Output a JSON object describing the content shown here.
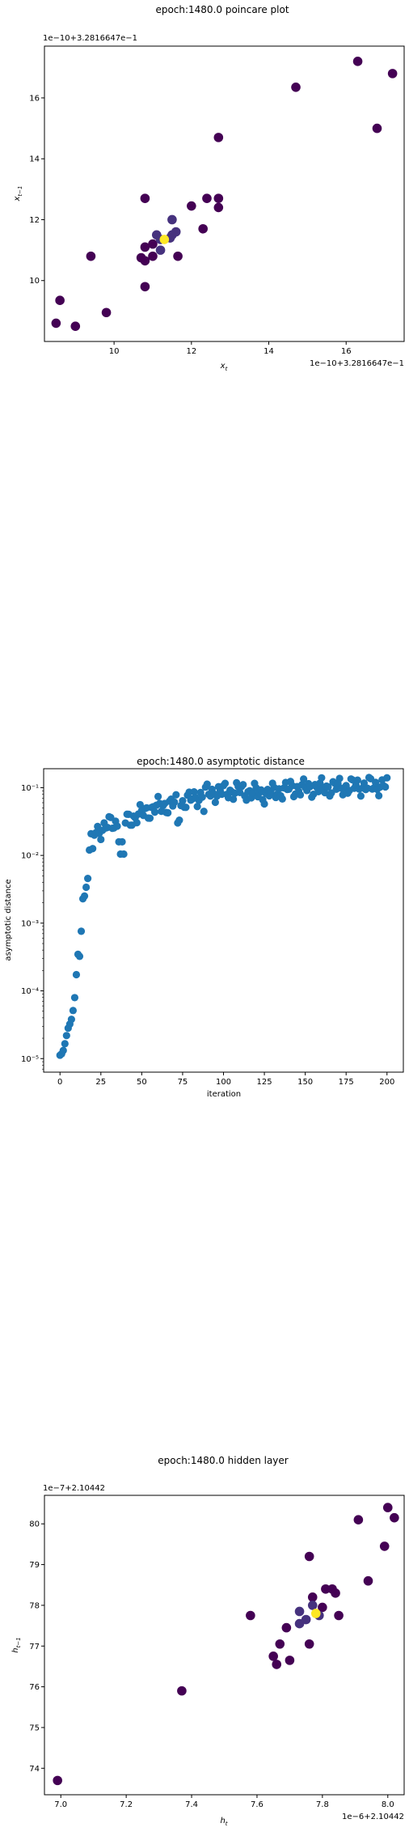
{
  "chart_data": [
    {
      "type": "scatter",
      "title": "epoch:1480.0 poincare plot",
      "xlabel": "x_t",
      "ylabel": "x_{t−1}",
      "offset_text_x": "1e−10+3.2816647e−1",
      "offset_text_y": "1e−10+3.2816647e−1",
      "xlim": [
        8.2,
        17.5
      ],
      "ylim": [
        8.0,
        17.7
      ],
      "xticks": [
        10,
        12,
        14,
        16
      ],
      "yticks": [
        10,
        12,
        14,
        16
      ],
      "xtick_labels": [
        "10",
        "12",
        "14",
        "16"
      ],
      "ytick_labels": [
        "10",
        "12",
        "14",
        "16"
      ],
      "colormap": "viridis",
      "colors": {
        "low": "#440154",
        "mid": "#46327e",
        "high": "#fde725"
      },
      "points": [
        {
          "x": 8.5,
          "y": 8.6,
          "c": 0
        },
        {
          "x": 8.6,
          "y": 9.35,
          "c": 0
        },
        {
          "x": 9.0,
          "y": 8.5,
          "c": 0
        },
        {
          "x": 9.4,
          "y": 10.8,
          "c": 0
        },
        {
          "x": 9.8,
          "y": 8.95,
          "c": 0
        },
        {
          "x": 10.7,
          "y": 10.75,
          "c": 0.05
        },
        {
          "x": 10.8,
          "y": 10.65,
          "c": 0.05
        },
        {
          "x": 10.8,
          "y": 9.8,
          "c": 0
        },
        {
          "x": 10.8,
          "y": 12.7,
          "c": 0
        },
        {
          "x": 10.8,
          "y": 11.1,
          "c": 0.05
        },
        {
          "x": 11.0,
          "y": 10.8,
          "c": 0.05
        },
        {
          "x": 11.0,
          "y": 11.2,
          "c": 0.05
        },
        {
          "x": 11.1,
          "y": 11.5,
          "c": 0.1
        },
        {
          "x": 11.2,
          "y": 11.0,
          "c": 0.1
        },
        {
          "x": 11.2,
          "y": 11.35,
          "c": 0.15
        },
        {
          "x": 11.3,
          "y": 11.35,
          "c": 1
        },
        {
          "x": 11.45,
          "y": 11.4,
          "c": 0.15
        },
        {
          "x": 11.5,
          "y": 11.5,
          "c": 0.15
        },
        {
          "x": 11.5,
          "y": 12.0,
          "c": 0.1
        },
        {
          "x": 11.6,
          "y": 11.6,
          "c": 0.1
        },
        {
          "x": 11.65,
          "y": 10.8,
          "c": 0.05
        },
        {
          "x": 12.0,
          "y": 12.45,
          "c": 0.05
        },
        {
          "x": 12.3,
          "y": 11.7,
          "c": 0.05
        },
        {
          "x": 12.4,
          "y": 12.7,
          "c": 0
        },
        {
          "x": 12.7,
          "y": 12.7,
          "c": 0
        },
        {
          "x": 12.7,
          "y": 12.4,
          "c": 0
        },
        {
          "x": 12.7,
          "y": 14.7,
          "c": 0
        },
        {
          "x": 14.7,
          "y": 16.35,
          "c": 0
        },
        {
          "x": 16.3,
          "y": 17.2,
          "c": 0
        },
        {
          "x": 16.8,
          "y": 15.0,
          "c": 0
        },
        {
          "x": 17.2,
          "y": 16.8,
          "c": 0
        }
      ]
    },
    {
      "type": "scatter",
      "title": "epoch:1480.0 asymptotic distance",
      "xlabel": "iteration",
      "ylabel": "asymptotic distance",
      "log_y": true,
      "xlim": [
        -10,
        210
      ],
      "ylim_log10": [
        -5.2,
        -0.72
      ],
      "xticks": [
        0,
        25,
        50,
        75,
        100,
        125,
        150,
        175,
        200
      ],
      "xtick_labels": [
        "0",
        "25",
        "50",
        "75",
        "100",
        "125",
        "150",
        "175",
        "200"
      ],
      "yticks_log10": [
        -5,
        -4,
        -3,
        -2,
        -1
      ],
      "ytick_labels": [
        "10⁻⁵",
        "10⁻⁴",
        "10⁻³",
        "10⁻²",
        "10⁻¹"
      ],
      "color": "#1f77b4",
      "early_points": [
        [
          0,
          -4.95
        ],
        [
          1,
          -4.93
        ],
        [
          2,
          -4.88
        ],
        [
          3,
          -4.78
        ],
        [
          4,
          -4.66
        ],
        [
          5,
          -4.55
        ],
        [
          6,
          -4.49
        ],
        [
          7,
          -4.42
        ],
        [
          8,
          -4.29
        ],
        [
          9,
          -4.1
        ],
        [
          10,
          -3.76
        ],
        [
          11,
          -3.46
        ],
        [
          12,
          -3.49
        ],
        [
          13,
          -3.12
        ],
        [
          14,
          -2.64
        ],
        [
          15,
          -2.6
        ],
        [
          16,
          -2.47
        ],
        [
          17,
          -2.34
        ],
        [
          18,
          -1.92
        ],
        [
          19,
          -1.68
        ],
        [
          20,
          -1.9
        ]
      ],
      "late_trend_log10": [
        [
          20,
          -1.68
        ],
        [
          30,
          -1.55
        ],
        [
          40,
          -1.5
        ],
        [
          50,
          -1.38
        ],
        [
          60,
          -1.28
        ],
        [
          75,
          -1.22
        ],
        [
          90,
          -1.08
        ],
        [
          110,
          -1.04
        ],
        [
          125,
          -1.1
        ],
        [
          140,
          -1.02
        ],
        [
          160,
          -1.0
        ],
        [
          180,
          -0.98
        ],
        [
          200,
          -0.97
        ]
      ],
      "dips": [
        [
          36,
          -1.8
        ],
        [
          37,
          -1.98
        ],
        [
          38,
          -1.8
        ],
        [
          39,
          -1.98
        ],
        [
          72,
          -1.52
        ],
        [
          73,
          -1.48
        ],
        [
          88,
          -1.35
        ]
      ]
    },
    {
      "type": "scatter",
      "title": "epoch:1480.0 hidden layer",
      "xlabel": "h_t",
      "ylabel": "h_{t−1}",
      "offset_text_x": "1e−6+2.10442",
      "offset_text_y": "1e−7+2.10442",
      "xlim": [
        6.95,
        8.05
      ],
      "ylim": [
        73.35,
        80.7
      ],
      "xticks": [
        7.0,
        7.2,
        7.4,
        7.6,
        7.8,
        8.0
      ],
      "yticks": [
        74,
        75,
        76,
        77,
        78,
        79,
        80
      ],
      "xtick_labels": [
        "7.0",
        "7.2",
        "7.4",
        "7.6",
        "7.8",
        "8.0"
      ],
      "ytick_labels": [
        "74",
        "75",
        "76",
        "77",
        "78",
        "79",
        "80"
      ],
      "colormap": "viridis",
      "colors": {
        "low": "#440154",
        "mid": "#46327e",
        "high": "#fde725"
      },
      "points": [
        {
          "x": 6.99,
          "y": 73.7,
          "c": 0
        },
        {
          "x": 7.37,
          "y": 75.9,
          "c": 0
        },
        {
          "x": 7.58,
          "y": 77.75,
          "c": 0
        },
        {
          "x": 7.65,
          "y": 76.75,
          "c": 0
        },
        {
          "x": 7.66,
          "y": 76.55,
          "c": 0
        },
        {
          "x": 7.67,
          "y": 77.05,
          "c": 0
        },
        {
          "x": 7.69,
          "y": 77.45,
          "c": 0.05
        },
        {
          "x": 7.7,
          "y": 76.65,
          "c": 0
        },
        {
          "x": 7.73,
          "y": 77.55,
          "c": 0.1
        },
        {
          "x": 7.73,
          "y": 77.85,
          "c": 0.1
        },
        {
          "x": 7.75,
          "y": 77.65,
          "c": 0.15
        },
        {
          "x": 7.76,
          "y": 77.05,
          "c": 0
        },
        {
          "x": 7.76,
          "y": 79.2,
          "c": 0
        },
        {
          "x": 7.77,
          "y": 78.0,
          "c": 0.1
        },
        {
          "x": 7.78,
          "y": 77.8,
          "c": 1
        },
        {
          "x": 7.79,
          "y": 77.75,
          "c": 0.1
        },
        {
          "x": 7.77,
          "y": 78.2,
          "c": 0.05
        },
        {
          "x": 7.8,
          "y": 77.95,
          "c": 0.05
        },
        {
          "x": 7.81,
          "y": 78.4,
          "c": 0
        },
        {
          "x": 7.83,
          "y": 78.4,
          "c": 0
        },
        {
          "x": 7.84,
          "y": 78.3,
          "c": 0
        },
        {
          "x": 7.85,
          "y": 77.75,
          "c": 0
        },
        {
          "x": 7.91,
          "y": 80.1,
          "c": 0
        },
        {
          "x": 7.94,
          "y": 78.6,
          "c": 0
        },
        {
          "x": 7.99,
          "y": 79.45,
          "c": 0
        },
        {
          "x": 8.0,
          "y": 80.4,
          "c": 0
        },
        {
          "x": 8.02,
          "y": 80.15,
          "c": 0
        }
      ]
    }
  ]
}
